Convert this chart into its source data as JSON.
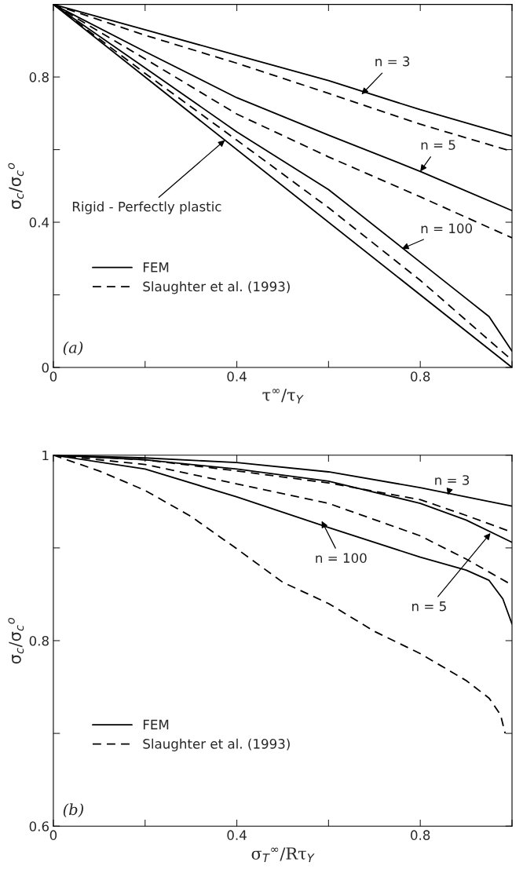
{
  "chart_data": [
    {
      "type": "line",
      "xlabel": "τ$^{∞}$/τ$_{Y}$",
      "ylabel": "σ$_{c}$/σ$_{c}$$^{o}$",
      "xlim": [
        0,
        1
      ],
      "ylim": [
        0,
        1
      ],
      "xticks": [
        0,
        {
          "value": 0.2,
          "label": null
        },
        0.4,
        {
          "value": 0.6,
          "label": null
        },
        0.8,
        {
          "value": 1,
          "label": null
        }
      ],
      "yticks": [
        0,
        {
          "value": 0.2,
          "label": null
        },
        0.4,
        {
          "value": 0.6,
          "label": null
        },
        0.8,
        {
          "value": 1,
          "label": null
        }
      ],
      "grid": false,
      "legend": "bottom left",
      "series": [
        {
          "name": "FEM",
          "color": "#000000",
          "line_style": "solid",
          "x": [
            0,
            0.2,
            0.4,
            0.6,
            0.8,
            1.0
          ],
          "values": [
            1,
            0.93,
            0.86,
            0.79,
            0.71,
            0.637
          ]
        },
        {
          "name": "Slaughter et al. (1993)",
          "color": "#000000",
          "line_style": "dashed",
          "x": [
            0,
            0.2,
            0.4,
            0.6,
            0.8,
            1.0
          ],
          "values": [
            1,
            0.915,
            0.838,
            0.755,
            0.67,
            0.595
          ]
        },
        {
          "color": "#000000",
          "line_style": "solid",
          "x": [
            0,
            0.2,
            0.4,
            0.6,
            0.8,
            1.0
          ],
          "values": [
            1,
            0.87,
            0.743,
            0.64,
            0.54,
            0.432
          ]
        },
        {
          "color": "#000000",
          "line_style": "dashed",
          "x": [
            0,
            0.2,
            0.4,
            0.6,
            0.8,
            1.0
          ],
          "values": [
            1,
            0.85,
            0.698,
            0.58,
            0.47,
            0.357
          ]
        },
        {
          "color": "#000000",
          "line_style": "solid",
          "x": [
            0,
            0.2,
            0.4,
            0.6,
            0.8,
            0.9,
            0.95,
            1.0
          ],
          "values": [
            1,
            0.825,
            0.649,
            0.49,
            0.29,
            0.19,
            0.14,
            0.045
          ]
        },
        {
          "color": "#000000",
          "line_style": "dashed",
          "x": [
            0,
            0.2,
            0.4,
            0.6,
            0.8,
            1.0
          ],
          "values": [
            1,
            0.81,
            0.626,
            0.44,
            0.24,
            0.02
          ]
        },
        {
          "color": "#000000",
          "line_style": "solid",
          "x": [
            0,
            1.0
          ],
          "values": [
            1,
            0
          ]
        }
      ],
      "annotations": [
        {
          "text": "n = 3",
          "x": 0.672,
          "y": 0.752
        },
        {
          "text": "n = 5",
          "x": 0.8,
          "y": 0.54
        },
        {
          "text": "n = 100",
          "x": 0.76,
          "y": 0.327
        },
        {
          "text": "Rigid - Perfectly plastic",
          "x": 0.374,
          "y": 0.626
        },
        "(a)"
      ]
    },
    {
      "type": "line",
      "xlabel": "σ$_{T}$$^{∞}$/Rτ$_{Y}$",
      "ylabel": "σ$_{c}$/σ$_{c}$$^{o}$",
      "xlim": [
        0,
        1
      ],
      "ylim": [
        0.6,
        1
      ],
      "xticks": [
        0,
        {
          "value": 0.2,
          "label": null
        },
        0.4,
        {
          "value": 0.6,
          "label": null
        },
        0.8,
        {
          "value": 1,
          "label": null
        }
      ],
      "yticks": [
        0.6,
        {
          "value": 0.7,
          "label": null
        },
        0.8,
        {
          "value": 0.9,
          "label": null
        },
        1
      ],
      "grid": false,
      "legend": "bottom left",
      "series": [
        {
          "name": "FEM",
          "color": "#000000",
          "line_style": "solid",
          "x": [
            0,
            0.2,
            0.4,
            0.6,
            0.8,
            1.0
          ],
          "values": [
            1,
            0.997,
            0.992,
            0.982,
            0.965,
            0.945
          ]
        },
        {
          "name": "Slaughter et al. (1993)",
          "color": "#000000",
          "line_style": "dashed",
          "x": [
            0,
            0.2,
            0.4,
            0.6,
            0.8,
            0.9,
            1.0
          ],
          "values": [
            1,
            0.995,
            0.983,
            0.97,
            0.952,
            0.935,
            0.917
          ]
        },
        {
          "color": "#000000",
          "line_style": "solid",
          "x": [
            0,
            0.2,
            0.4,
            0.6,
            0.8,
            0.9,
            1.0
          ],
          "values": [
            1,
            0.995,
            0.985,
            0.972,
            0.948,
            0.93,
            0.906
          ]
        },
        {
          "color": "#000000",
          "line_style": "dashed",
          "x": [
            0,
            0.2,
            0.4,
            0.6,
            0.8,
            0.9,
            1.0
          ],
          "values": [
            1,
            0.99,
            0.969,
            0.948,
            0.913,
            0.888,
            0.86
          ]
        },
        {
          "color": "#000000",
          "line_style": "solid",
          "x": [
            0,
            0.2,
            0.4,
            0.6,
            0.8,
            0.9,
            0.95,
            0.98,
            1.0
          ],
          "values": [
            1,
            0.985,
            0.955,
            0.922,
            0.89,
            0.876,
            0.865,
            0.845,
            0.818
          ]
        },
        {
          "color": "#000000",
          "line_style": "dashed",
          "x": [
            0,
            0.1,
            0.2,
            0.3,
            0.4,
            0.5,
            0.6,
            0.7,
            0.8,
            0.9,
            0.95,
            0.975,
            0.985
          ],
          "values": [
            1,
            0.983,
            0.962,
            0.934,
            0.899,
            0.863,
            0.84,
            0.81,
            0.786,
            0.757,
            0.738,
            0.72,
            0.7
          ]
        }
      ],
      "annotations": [
        {
          "text": "n = 3",
          "x": 0.86,
          "y": 0.957
        },
        {
          "text": "n = 100",
          "x": 0.585,
          "y": 0.929
        },
        {
          "text": "n = 5",
          "x": 0.953,
          "y": 0.916
        },
        "(b)"
      ]
    }
  ]
}
